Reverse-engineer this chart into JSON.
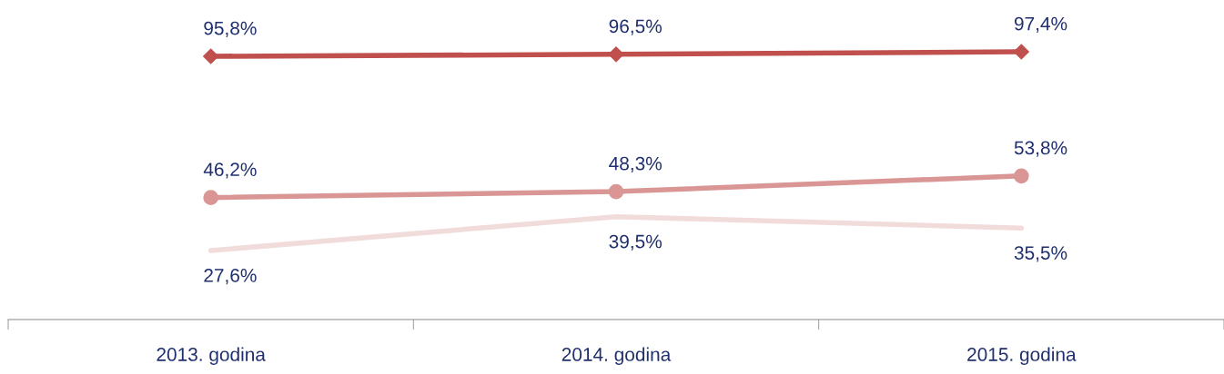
{
  "chart_data": {
    "type": "line",
    "categories": [
      "2013. godina",
      "2014. godina",
      "2015. godina"
    ],
    "series": [
      {
        "color": "#c0504d",
        "marker": "diamond",
        "values": [
          95.8,
          96.5,
          97.4
        ],
        "value_labels": [
          "95,8%",
          "96,5%",
          "97,4%"
        ]
      },
      {
        "color": "#d99694",
        "marker": "circle",
        "values": [
          46.2,
          48.3,
          53.8
        ],
        "value_labels": [
          "46,2%",
          "48,3%",
          "53,8%"
        ]
      },
      {
        "color": "#f2dcdb",
        "marker": "none",
        "values": [
          27.6,
          39.5,
          35.5
        ],
        "value_labels": [
          "27,6%",
          "39,5%",
          "35,5%"
        ]
      }
    ]
  }
}
